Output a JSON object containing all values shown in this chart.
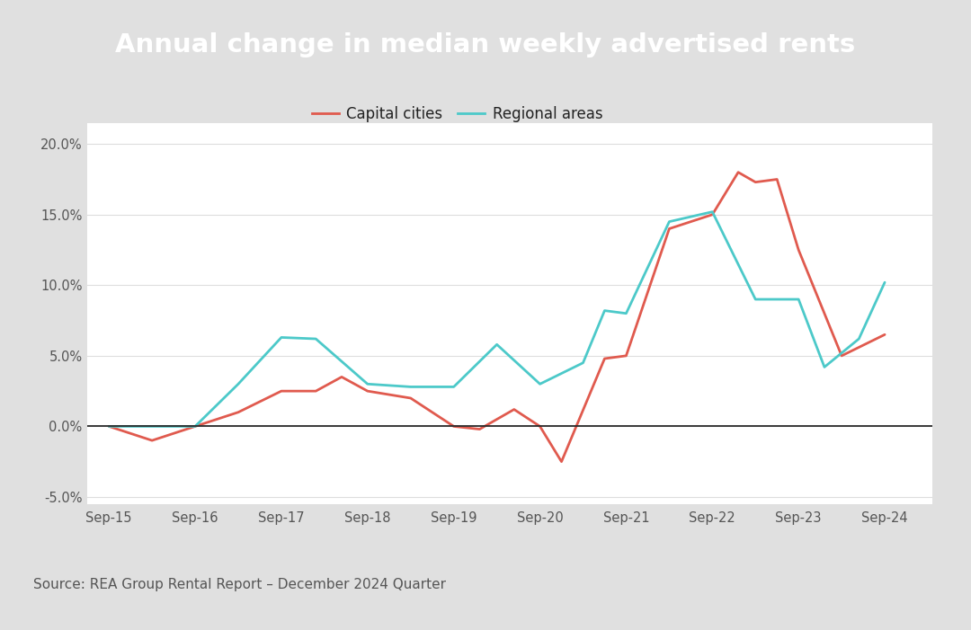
{
  "title": "Annual change in median weekly advertised rents",
  "title_bg_color": "#333333",
  "title_text_color": "#ffffff",
  "source_text": "Source: REA Group Rental Report – December 2024 Quarter",
  "chart_bg_color": "#ffffff",
  "outer_bg_color": "#e8e8e8",
  "x_labels": [
    "Sep-15",
    "Sep-16",
    "Sep-17",
    "Sep-18",
    "Sep-19",
    "Sep-20",
    "Sep-21",
    "Sep-22",
    "Sep-23",
    "Sep-24"
  ],
  "capital_cities_label": "Capital cities",
  "capital_cities_color": "#e05a4e",
  "regional_areas_label": "Regional areas",
  "regional_areas_color": "#4cc9c9",
  "cap_x": [
    0,
    0.5,
    1.0,
    1.5,
    2.0,
    2.5,
    3.0,
    3.5,
    4.0,
    4.5,
    5.0,
    5.5,
    6.0,
    6.5,
    7.0,
    7.5,
    8.0,
    8.5,
    9.0,
    9.25
  ],
  "cap_y": [
    0.0,
    -1.0,
    0.0,
    1.0,
    2.5,
    2.5,
    3.5,
    2.5,
    0.0,
    -0.2,
    0.0,
    1.2,
    0.0,
    -2.5,
    4.8,
    15.0,
    18.0,
    17.5,
    12.5,
    6.5
  ],
  "reg_x": [
    0,
    0.5,
    1.0,
    1.5,
    2.0,
    2.5,
    3.0,
    3.5,
    4.0,
    4.5,
    5.0,
    5.5,
    6.0,
    6.5,
    7.0,
    7.5,
    8.0,
    8.5,
    9.0,
    9.25
  ],
  "reg_y": [
    0.0,
    0.0,
    0.0,
    3.0,
    6.3,
    6.2,
    3.0,
    2.8,
    2.8,
    5.8,
    3.0,
    4.5,
    8.2,
    8.0,
    14.5,
    15.2,
    9.0,
    4.2,
    6.5,
    10.2
  ],
  "ylim": [
    -5.5,
    21.5
  ],
  "yticks": [
    -5.0,
    0.0,
    5.0,
    10.0,
    15.0,
    20.0
  ]
}
